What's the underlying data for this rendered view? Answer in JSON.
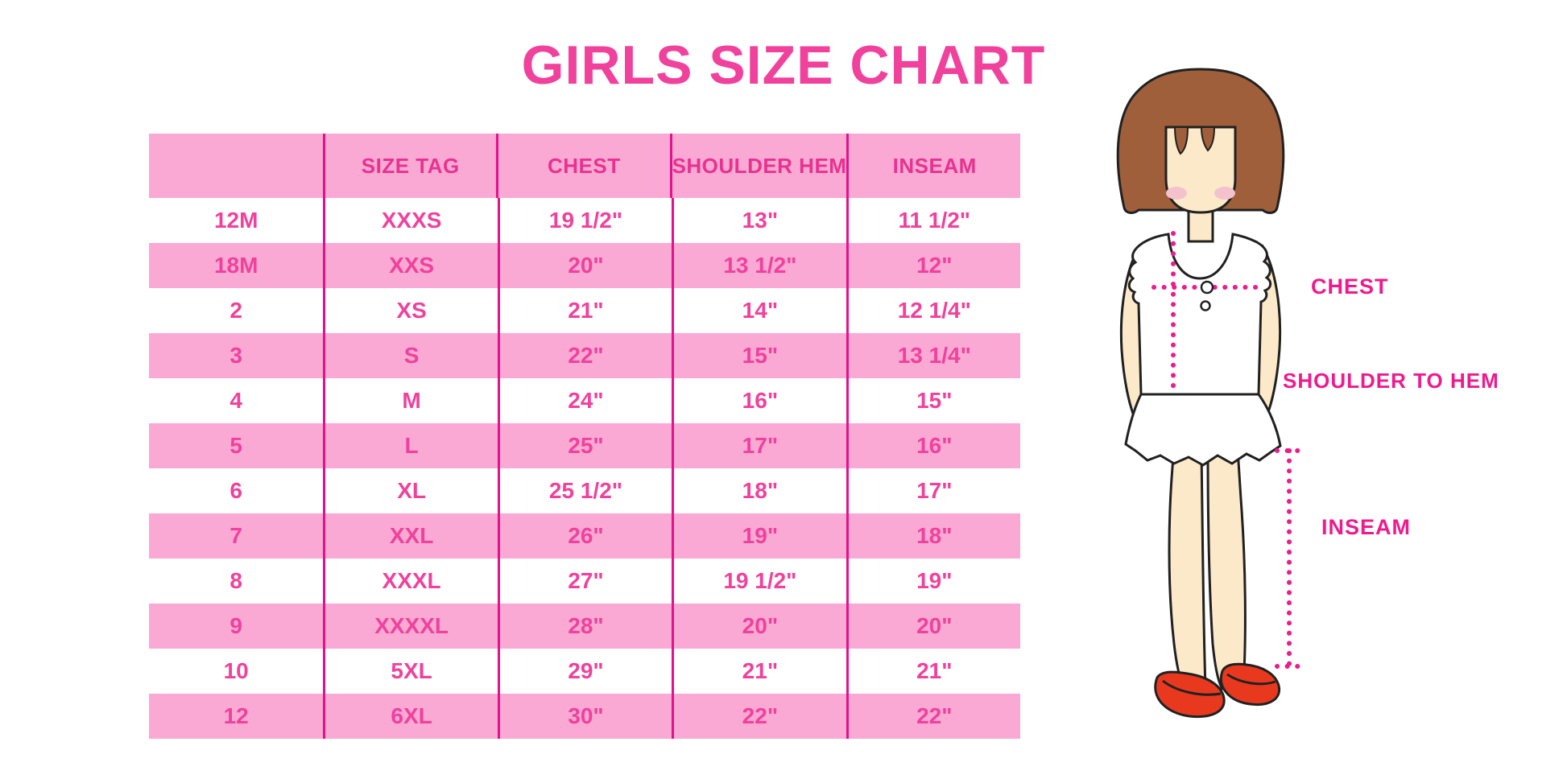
{
  "title": "GIRLS SIZE CHART",
  "chart_data": {
    "type": "table",
    "title": "GIRLS SIZE CHART",
    "columns": [
      "",
      "SIZE TAG",
      "CHEST",
      "SHOULDER HEM",
      "INSEAM"
    ],
    "rows": [
      [
        "12M",
        "XXXS",
        "19 1/2\"",
        "13\"",
        "11 1/2\""
      ],
      [
        "18M",
        "XXS",
        "20\"",
        "13 1/2\"",
        "12\""
      ],
      [
        "2",
        "XS",
        "21\"",
        "14\"",
        "12 1/4\""
      ],
      [
        "3",
        "S",
        "22\"",
        "15\"",
        "13 1/4\""
      ],
      [
        "4",
        "M",
        "24\"",
        "16\"",
        "15\""
      ],
      [
        "5",
        "L",
        "25\"",
        "17\"",
        "16\""
      ],
      [
        "6",
        "XL",
        "25 1/2\"",
        "18\"",
        "17\""
      ],
      [
        "7",
        "XXL",
        "26\"",
        "19\"",
        "18\""
      ],
      [
        "8",
        "XXXL",
        "27\"",
        "19 1/2\"",
        "19\""
      ],
      [
        "9",
        "XXXXL",
        "28\"",
        "20\"",
        "20\""
      ],
      [
        "10",
        "5XL",
        "29\"",
        "21\"",
        "21\""
      ],
      [
        "12",
        "6XL",
        "30\"",
        "22\"",
        "22\""
      ]
    ],
    "row_stripe": "alternating white / pink, starting white",
    "gridlines": "vertical column dividers only"
  },
  "diagram": {
    "description": "cartoon girl figure with measurement guides",
    "labels": {
      "chest": "CHEST",
      "shoulder_to_hem": "SHOULDER TO HEM",
      "inseam": "INSEAM"
    }
  },
  "colors": {
    "accent": "#f0419c",
    "accent_deep": "#e8328f",
    "divider": "#e5118c",
    "row_pink": "#f9a9d4",
    "label_pink": "#ed1b8e",
    "outline": "#212121",
    "hair": "#9f5f3b",
    "skin": "#fbe9c9",
    "blush": "#f3c2cd",
    "shoe": "#e8391f"
  }
}
